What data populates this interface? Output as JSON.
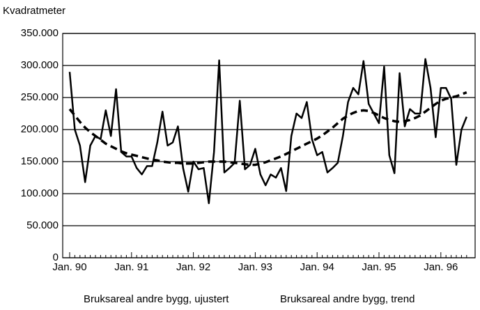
{
  "chart_data": {
    "type": "line",
    "ylabel": "Kvadratmeter",
    "categories": [
      "Jan. 90",
      null,
      null,
      null,
      null,
      null,
      null,
      null,
      null,
      null,
      null,
      null,
      "Jan. 91",
      null,
      null,
      null,
      null,
      null,
      null,
      null,
      null,
      null,
      null,
      null,
      "Jan. 92",
      null,
      null,
      null,
      null,
      null,
      null,
      null,
      null,
      null,
      null,
      null,
      "Jan. 93",
      null,
      null,
      null,
      null,
      null,
      null,
      null,
      null,
      null,
      null,
      null,
      "Jan. 94",
      null,
      null,
      null,
      null,
      null,
      null,
      null,
      null,
      null,
      null,
      null,
      "Jan. 95",
      null,
      null,
      null,
      null,
      null,
      null,
      null,
      null,
      null,
      null,
      null,
      "Jan. 96",
      null,
      null,
      null,
      null,
      null
    ],
    "series": [
      {
        "name": "Bruksareal andre bygg, ujustert",
        "color": "#000000",
        "dash": false,
        "values": [
          290000,
          200000,
          175000,
          118000,
          175000,
          190000,
          185000,
          230000,
          190000,
          263000,
          165000,
          158000,
          158000,
          140000,
          130000,
          143000,
          143000,
          180000,
          228000,
          175000,
          180000,
          205000,
          140000,
          103000,
          150000,
          138000,
          140000,
          85000,
          165000,
          308000,
          133000,
          140000,
          148000,
          245000,
          138000,
          145000,
          170000,
          130000,
          113000,
          130000,
          125000,
          140000,
          104000,
          190000,
          225000,
          218000,
          243000,
          185000,
          160000,
          165000,
          133000,
          140000,
          148000,
          190000,
          243000,
          265000,
          255000,
          307000,
          240000,
          225000,
          210000,
          298000,
          160000,
          132000,
          288000,
          205000,
          232000,
          225000,
          225000,
          310000,
          265000,
          188000,
          265000,
          265000,
          248000,
          145000,
          200000,
          220000
        ]
      },
      {
        "name": "Bruksareal andre bygg, trend",
        "color": "#000000",
        "dash": true,
        "values": [
          232000,
          222000,
          212000,
          203000,
          196000,
          190000,
          184000,
          178000,
          174000,
          170000,
          166000,
          163000,
          161000,
          159000,
          157000,
          155000,
          153000,
          152000,
          150000,
          149000,
          148000,
          148000,
          147000,
          147000,
          147000,
          148000,
          149000,
          150000,
          150000,
          150000,
          150000,
          149000,
          148000,
          147000,
          146000,
          145000,
          145000,
          147000,
          149000,
          152000,
          155000,
          158000,
          162000,
          166000,
          170000,
          174000,
          178000,
          182000,
          186000,
          191000,
          197000,
          203000,
          210000,
          217000,
          222000,
          226000,
          229000,
          230000,
          229000,
          226000,
          222000,
          218000,
          215000,
          213000,
          212000,
          213000,
          215000,
          218000,
          222000,
          228000,
          234000,
          240000,
          245000,
          248000,
          250000,
          252000,
          255000,
          258000
        ]
      }
    ],
    "ylim": [
      0,
      350000
    ],
    "yticks": [
      {
        "value": 0,
        "label": "0"
      },
      {
        "value": 50000,
        "label": "50.000"
      },
      {
        "value": 100000,
        "label": "100.000"
      },
      {
        "value": 150000,
        "label": "150.000"
      },
      {
        "value": 200000,
        "label": "200.000"
      },
      {
        "value": 250000,
        "label": "250.000"
      },
      {
        "value": 300000,
        "label": "300.000"
      },
      {
        "value": 350000,
        "label": "350.000"
      }
    ],
    "grid": true,
    "legend": "bottom"
  }
}
